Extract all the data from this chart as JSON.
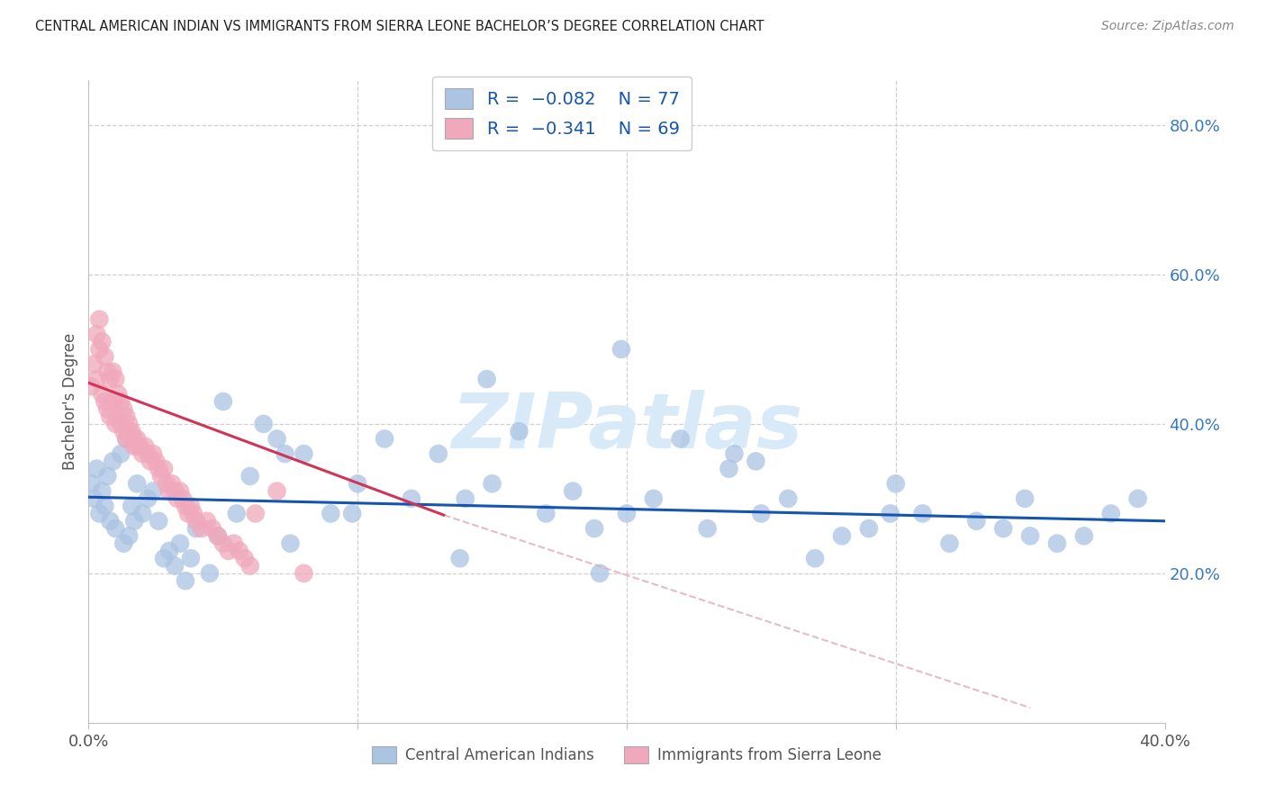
{
  "title": "CENTRAL AMERICAN INDIAN VS IMMIGRANTS FROM SIERRA LEONE BACHELOR’S DEGREE CORRELATION CHART",
  "source": "Source: ZipAtlas.com",
  "ylabel": "Bachelor's Degree",
  "xlim": [
    0.0,
    0.4
  ],
  "ylim": [
    0.0,
    0.86
  ],
  "x_tick_positions": [
    0.0,
    0.1,
    0.2,
    0.3,
    0.4
  ],
  "x_tick_labels": [
    "0.0%",
    "",
    "",
    "",
    "40.0%"
  ],
  "y_ticks_right": [
    0.2,
    0.4,
    0.6,
    0.8
  ],
  "y_tick_labels_right": [
    "20.0%",
    "40.0%",
    "60.0%",
    "80.0%"
  ],
  "blue_color": "#aac4e2",
  "pink_color": "#f0a8bc",
  "blue_line_color": "#1555b0",
  "pink_line_color": "#d03558",
  "pink_dash_color": "#e0b0c0",
  "grid_color": "#d0d0d0",
  "spine_color": "#c0c0c0",
  "watermark_color": "#d8eaf8",
  "legend_text_color": "#1555b0",
  "right_axis_color": "#3878c0",
  "blue_x": [
    0.001,
    0.002,
    0.003,
    0.004,
    0.005,
    0.006,
    0.007,
    0.008,
    0.009,
    0.01,
    0.012,
    0.013,
    0.014,
    0.015,
    0.016,
    0.017,
    0.018,
    0.02,
    0.022,
    0.024,
    0.026,
    0.028,
    0.03,
    0.032,
    0.034,
    0.036,
    0.038,
    0.04,
    0.045,
    0.05,
    0.055,
    0.06,
    0.065,
    0.07,
    0.075,
    0.08,
    0.09,
    0.1,
    0.11,
    0.12,
    0.13,
    0.14,
    0.15,
    0.16,
    0.17,
    0.18,
    0.19,
    0.2,
    0.21,
    0.22,
    0.23,
    0.24,
    0.25,
    0.26,
    0.27,
    0.28,
    0.29,
    0.3,
    0.31,
    0.32,
    0.33,
    0.34,
    0.35,
    0.36,
    0.37,
    0.38,
    0.39,
    0.048,
    0.073,
    0.098,
    0.148,
    0.198,
    0.248,
    0.298,
    0.348,
    0.138,
    0.188,
    0.238
  ],
  "blue_y": [
    0.32,
    0.3,
    0.34,
    0.28,
    0.31,
    0.29,
    0.33,
    0.27,
    0.35,
    0.26,
    0.36,
    0.24,
    0.38,
    0.25,
    0.29,
    0.27,
    0.32,
    0.28,
    0.3,
    0.31,
    0.27,
    0.22,
    0.23,
    0.21,
    0.24,
    0.19,
    0.22,
    0.26,
    0.2,
    0.43,
    0.28,
    0.33,
    0.4,
    0.38,
    0.24,
    0.36,
    0.28,
    0.32,
    0.38,
    0.3,
    0.36,
    0.3,
    0.32,
    0.39,
    0.28,
    0.31,
    0.2,
    0.28,
    0.3,
    0.38,
    0.26,
    0.36,
    0.28,
    0.3,
    0.22,
    0.25,
    0.26,
    0.32,
    0.28,
    0.24,
    0.27,
    0.26,
    0.25,
    0.24,
    0.25,
    0.28,
    0.3,
    0.25,
    0.36,
    0.28,
    0.46,
    0.5,
    0.35,
    0.28,
    0.3,
    0.22,
    0.26,
    0.34
  ],
  "pink_x": [
    0.001,
    0.002,
    0.003,
    0.004,
    0.005,
    0.006,
    0.007,
    0.008,
    0.009,
    0.01,
    0.011,
    0.012,
    0.013,
    0.014,
    0.015,
    0.016,
    0.017,
    0.018,
    0.019,
    0.02,
    0.021,
    0.022,
    0.023,
    0.024,
    0.025,
    0.026,
    0.027,
    0.028,
    0.029,
    0.03,
    0.031,
    0.032,
    0.033,
    0.034,
    0.035,
    0.036,
    0.037,
    0.038,
    0.039,
    0.04,
    0.042,
    0.044,
    0.046,
    0.048,
    0.05,
    0.052,
    0.054,
    0.056,
    0.058,
    0.06,
    0.003,
    0.004,
    0.005,
    0.006,
    0.007,
    0.008,
    0.009,
    0.01,
    0.011,
    0.012,
    0.013,
    0.014,
    0.015,
    0.016,
    0.017,
    0.018,
    0.062,
    0.07,
    0.08
  ],
  "pink_y": [
    0.45,
    0.48,
    0.46,
    0.5,
    0.44,
    0.43,
    0.42,
    0.41,
    0.43,
    0.4,
    0.41,
    0.4,
    0.39,
    0.38,
    0.39,
    0.38,
    0.37,
    0.38,
    0.37,
    0.36,
    0.37,
    0.36,
    0.35,
    0.36,
    0.35,
    0.34,
    0.33,
    0.34,
    0.32,
    0.31,
    0.32,
    0.31,
    0.3,
    0.31,
    0.3,
    0.29,
    0.28,
    0.29,
    0.28,
    0.27,
    0.26,
    0.27,
    0.26,
    0.25,
    0.24,
    0.23,
    0.24,
    0.23,
    0.22,
    0.21,
    0.52,
    0.54,
    0.51,
    0.49,
    0.47,
    0.46,
    0.47,
    0.46,
    0.44,
    0.43,
    0.42,
    0.41,
    0.4,
    0.39,
    0.38,
    0.37,
    0.28,
    0.31,
    0.2
  ],
  "blue_line": {
    "x0": 0.0,
    "y0": 0.302,
    "x1": 0.4,
    "y1": 0.27
  },
  "pink_line_solid": {
    "x0": 0.0,
    "y0": 0.455,
    "x1": 0.132,
    "y1": 0.278
  },
  "pink_line_dash": {
    "x0": 0.132,
    "y0": 0.278,
    "x1": 0.35,
    "y1": 0.02
  }
}
